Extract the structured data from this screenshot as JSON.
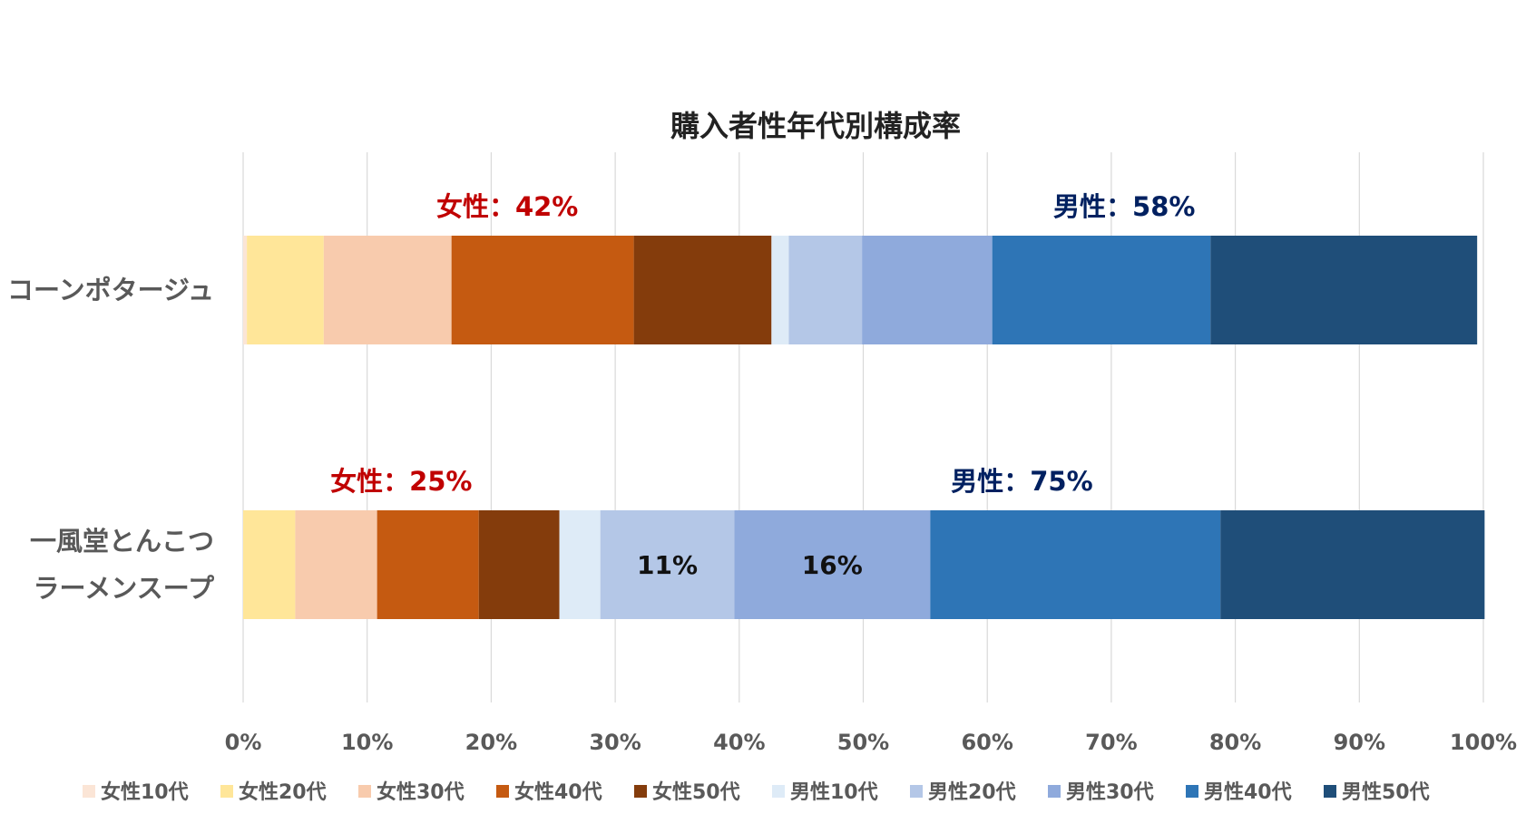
{
  "chart_data": {
    "type": "bar",
    "orientation": "horizontal",
    "stacked": "percent",
    "title": "購入者性年代別構成率",
    "categories": [
      "コーンポタージュ",
      "一風堂とんこつ\nラーメンスープ"
    ],
    "category_lines": [
      [
        "コーンポタージュ"
      ],
      [
        "一風堂とんこつ",
        "ラーメンスープ"
      ]
    ],
    "xlim": [
      0,
      100
    ],
    "x_ticks": [
      "0%",
      "10%",
      "20%",
      "30%",
      "40%",
      "50%",
      "60%",
      "70%",
      "80%",
      "90%",
      "100%"
    ],
    "grid": true,
    "legend_position": "bottom",
    "series": [
      {
        "name": "女性10代",
        "color": "#FBE5D6",
        "values": [
          0.3,
          0.0
        ]
      },
      {
        "name": "女性20代",
        "color": "#FFE699",
        "values": [
          6.2,
          4.2
        ]
      },
      {
        "name": "女性30代",
        "color": "#F8CBAD",
        "values": [
          10.3,
          6.6
        ]
      },
      {
        "name": "女性40代",
        "color": "#C55A11",
        "values": [
          14.7,
          8.2
        ]
      },
      {
        "name": "女性50代",
        "color": "#843C0C",
        "values": [
          11.1,
          6.5
        ]
      },
      {
        "name": "男性10代",
        "color": "#DEEBF7",
        "values": [
          1.4,
          3.3
        ]
      },
      {
        "name": "男性20代",
        "color": "#B4C7E7",
        "values": [
          5.9,
          10.8
        ]
      },
      {
        "name": "男性30代",
        "color": "#8FAADC",
        "values": [
          10.5,
          15.8
        ]
      },
      {
        "name": "男性40代",
        "color": "#2E75B6",
        "values": [
          17.6,
          23.4
        ]
      },
      {
        "name": "男性50代",
        "color": "#1F4E79",
        "values": [
          21.5,
          21.3
        ]
      }
    ],
    "annotations": [
      {
        "text": "女性：42%",
        "category": 0,
        "group": "female",
        "color": "#C00000"
      },
      {
        "text": "男性：58%",
        "category": 0,
        "group": "male",
        "color": "#002060"
      },
      {
        "text": "女性：25%",
        "category": 1,
        "group": "female",
        "color": "#C00000"
      },
      {
        "text": "男性：75%",
        "category": 1,
        "group": "male",
        "color": "#002060"
      }
    ],
    "segment_labels": [
      {
        "category": 1,
        "series": "男性20代",
        "text": "11%"
      },
      {
        "category": 1,
        "series": "男性30代",
        "text": "16%"
      }
    ]
  }
}
